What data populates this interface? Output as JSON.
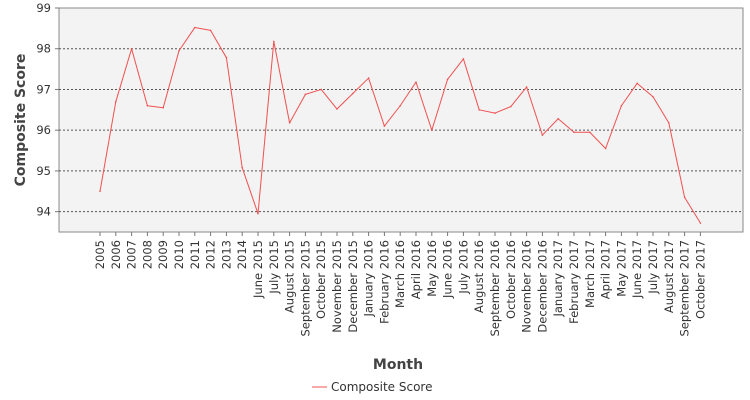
{
  "chart_data": {
    "type": "line",
    "xlabel": "Month",
    "ylabel": "Composite Score",
    "ylim": [
      93.5,
      99
    ],
    "yticks": [
      94,
      95,
      96,
      97,
      98,
      99
    ],
    "grid": true,
    "legend_position": "bottom-center",
    "categories": [
      "2005",
      "2006",
      "2007",
      "2008",
      "2009",
      "2010",
      "2011",
      "2012",
      "2013",
      "2014",
      "June 2015",
      "July 2015",
      "August 2015",
      "September 2015",
      "October 2015",
      "November 2015",
      "December 2015",
      "January 2016",
      "February 2016",
      "March 2016",
      "April 2016",
      "May 2016",
      "June 2016",
      "July 2016",
      "August 2016",
      "September 2016",
      "October 2016",
      "November 2016",
      "December 2016",
      "January 2017",
      "February 2017",
      "March 2017",
      "April 2017",
      "May 2017",
      "June 2017",
      "July 2017",
      "August 2017",
      "September 2017",
      "October 2017"
    ],
    "series": [
      {
        "name": "Composite Score",
        "color": "#f05050",
        "values": [
          94.5,
          96.7,
          98.0,
          96.6,
          96.55,
          97.95,
          98.52,
          98.45,
          97.78,
          95.08,
          93.95,
          98.18,
          96.18,
          96.88,
          97.0,
          96.52,
          96.9,
          97.28,
          96.1,
          96.6,
          97.18,
          96.0,
          97.25,
          97.75,
          96.5,
          96.42,
          96.58,
          97.06,
          95.88,
          96.28,
          95.95,
          95.95,
          95.55,
          96.6,
          97.15,
          96.82,
          96.18,
          94.35,
          93.72
        ]
      }
    ]
  }
}
